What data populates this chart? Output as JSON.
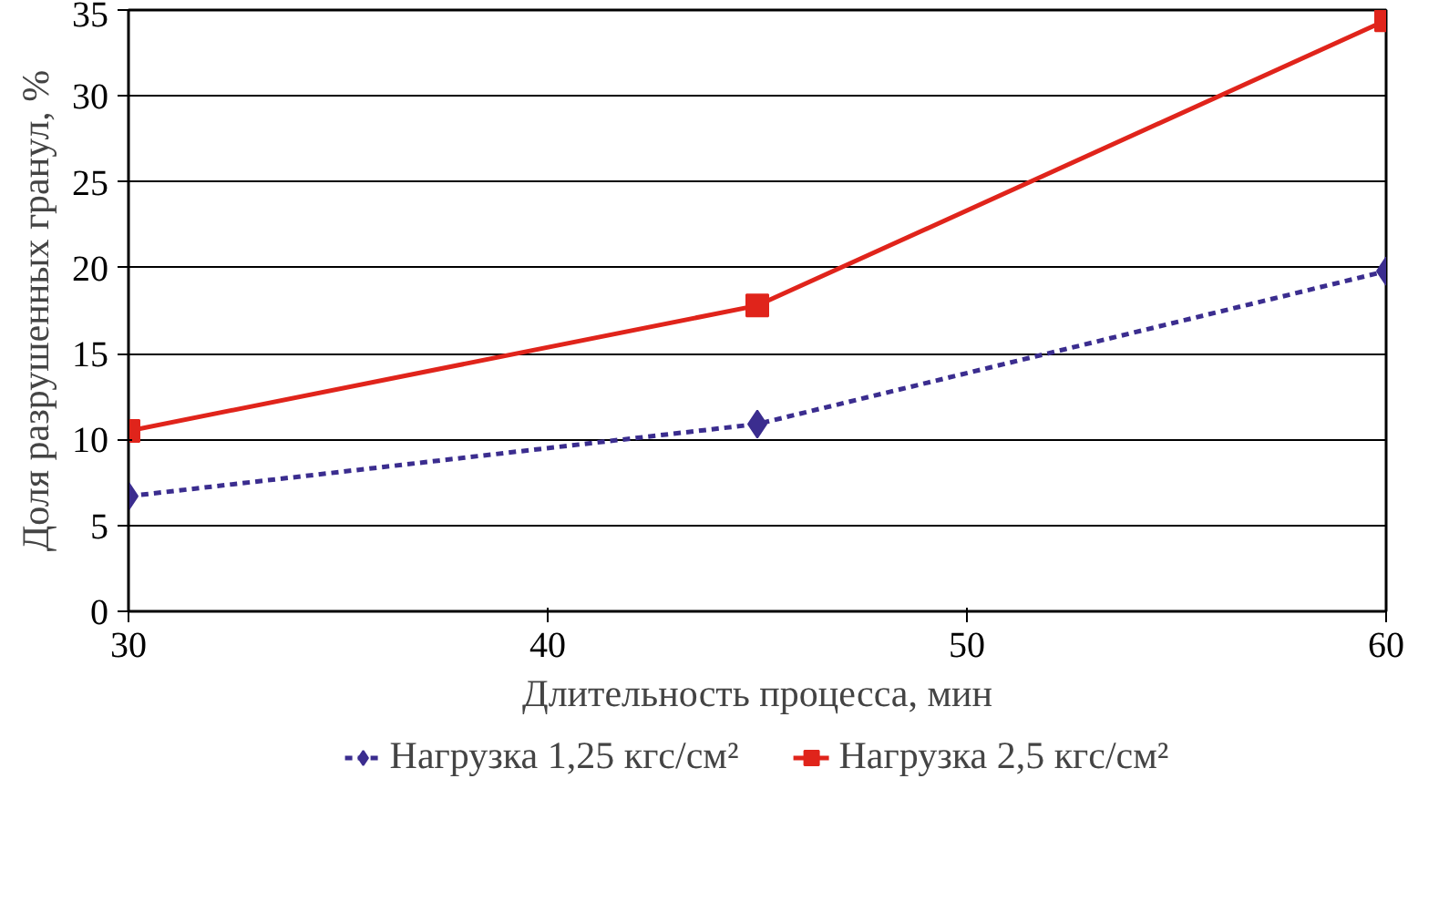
{
  "chart_data": {
    "type": "line",
    "xlabel": "Длительность процесса, мин",
    "ylabel": "Доля разрушенных гранул, %",
    "x": [
      30,
      45,
      60
    ],
    "series": [
      {
        "name": "Нагрузка 1,25 кгс/см²",
        "color": "#3b2d8f",
        "values": [
          6.7,
          10.9,
          19.8
        ],
        "marker": "diamond",
        "line_style": "dashed"
      },
      {
        "name": "Нагрузка 2,5 кгс/см²",
        "color": "#e0241b",
        "values": [
          10.5,
          17.8,
          34.4
        ],
        "marker": "square",
        "line_style": "solid"
      }
    ],
    "xlim": [
      30,
      60
    ],
    "xticks": [
      30,
      40,
      50,
      60
    ],
    "ylim": [
      0,
      35
    ],
    "yticks": [
      0,
      5,
      10,
      15,
      20,
      25,
      30,
      35
    ],
    "grid": "y",
    "legend": "bottom"
  }
}
